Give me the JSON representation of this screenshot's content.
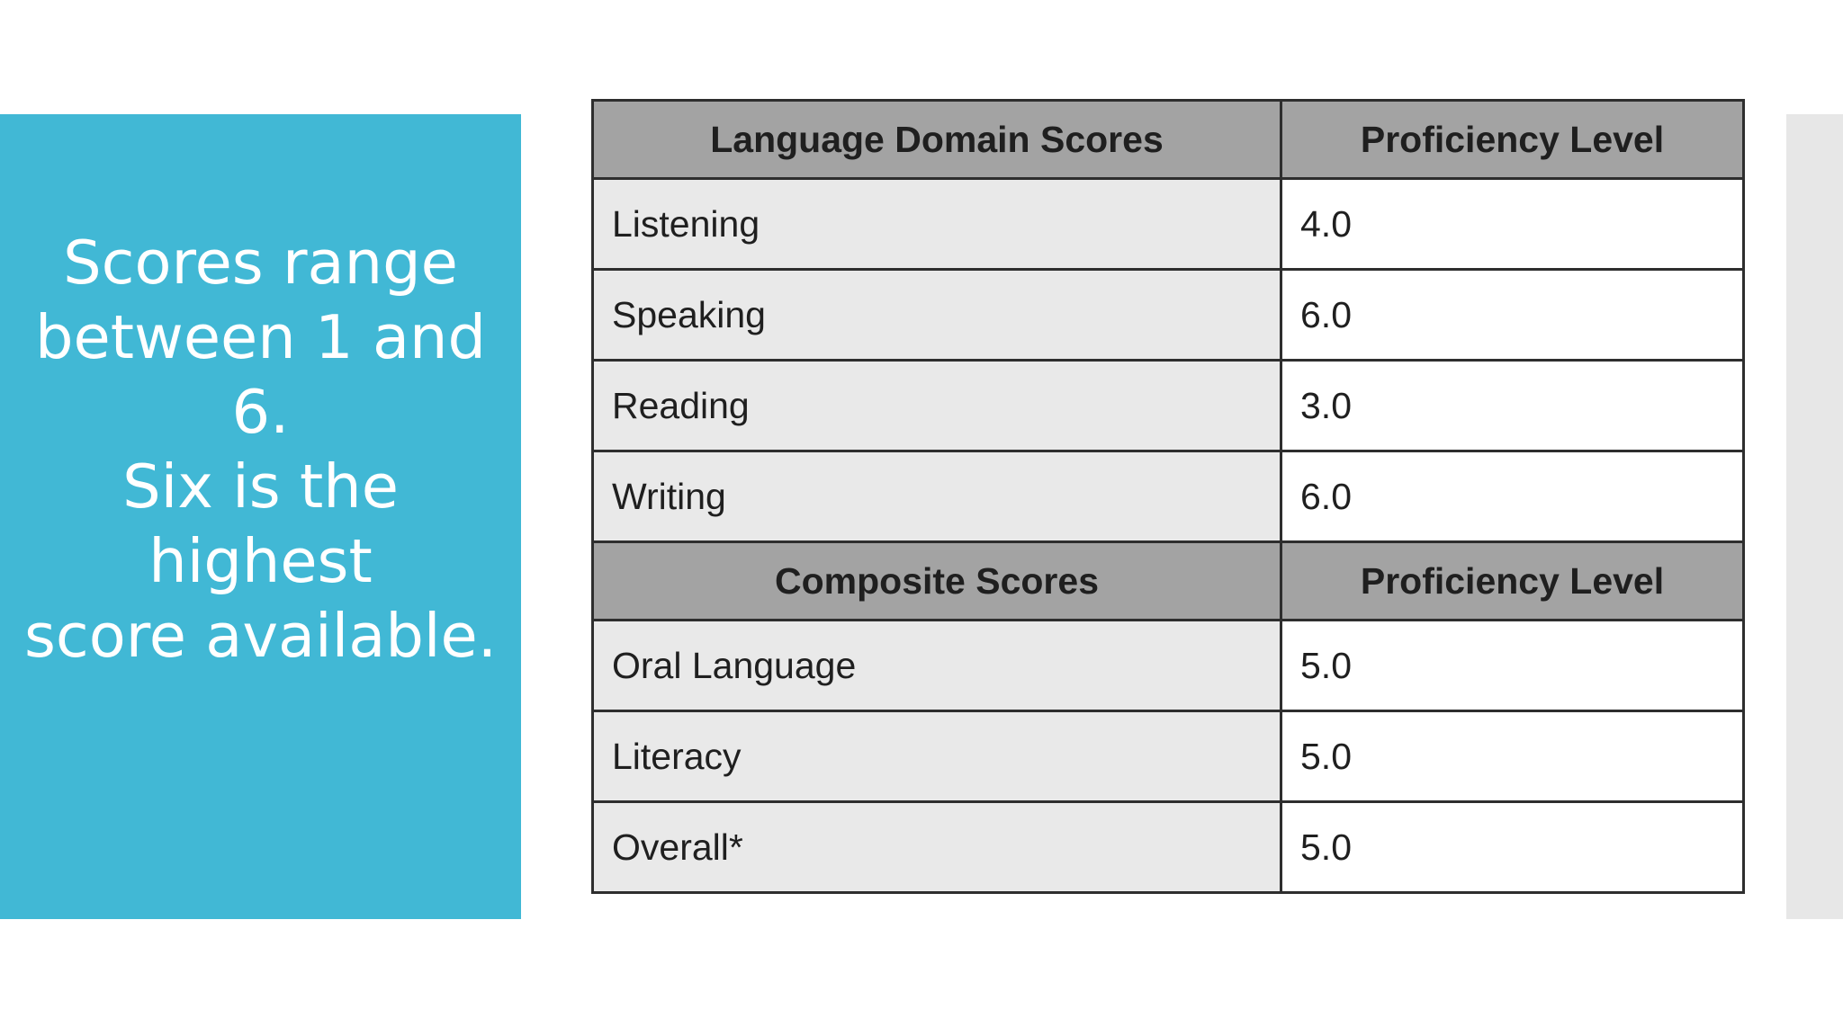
{
  "side_panel": {
    "lines": [
      "Scores range",
      "between 1 and 6.",
      "Six is the highest",
      "score available."
    ]
  },
  "table": {
    "sections": [
      {
        "header": [
          "Language Domain Scores",
          "Proficiency Level"
        ],
        "rows": [
          {
            "label": "Listening",
            "value": "4.0"
          },
          {
            "label": "Speaking",
            "value": "6.0"
          },
          {
            "label": "Reading",
            "value": "3.0"
          },
          {
            "label": "Writing",
            "value": "6.0"
          }
        ]
      },
      {
        "header": [
          "Composite Scores",
          "Proficiency Level"
        ],
        "rows": [
          {
            "label": "Oral Language",
            "value": "5.0"
          },
          {
            "label": "Literacy",
            "value": "5.0"
          },
          {
            "label": "Overall*",
            "value": "5.0"
          }
        ]
      }
    ]
  },
  "colors": {
    "panel": "#41b8d5",
    "header_bg": "#a3a3a3",
    "label_bg": "#e9e9e9",
    "strip": "#e7e7e7"
  }
}
